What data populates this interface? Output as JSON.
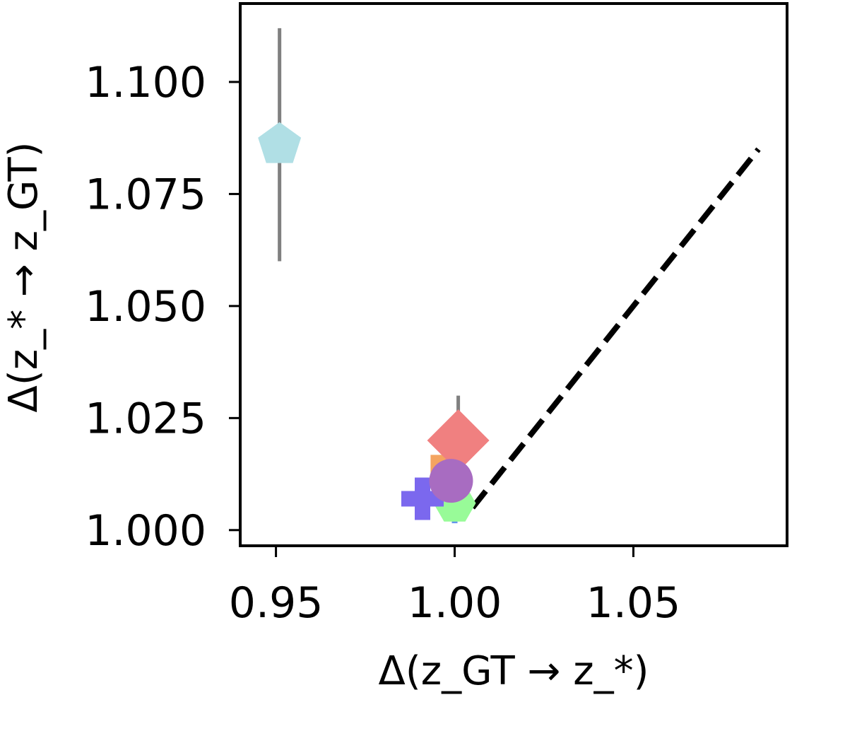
{
  "chart_data": {
    "type": "scatter",
    "xlabel": "Δ(z_GT → z_*)",
    "ylabel": "Δ(z_* → z_GT)",
    "xlim": [
      0.94,
      1.093
    ],
    "ylim": [
      0.9965,
      1.1175
    ],
    "xticks": [
      "0.95",
      "1.00",
      "1.05"
    ],
    "yticks": [
      "1.000",
      "1.025",
      "1.050",
      "1.075",
      "1.100"
    ],
    "reference_line": {
      "style": "dashed",
      "color": "#000000",
      "x": [
        1.005,
        1.085
      ],
      "y": [
        1.005,
        1.085
      ]
    },
    "points": [
      {
        "marker": "pentagon",
        "color": "#b0dfe5",
        "x": 0.951,
        "y": 1.086,
        "yerr": [
          1.06,
          1.112
        ]
      },
      {
        "marker": "diamond",
        "color": "#f08080",
        "x": 1.001,
        "y": 1.02,
        "yerr": [
          1.01,
          1.03
        ]
      },
      {
        "marker": "square",
        "color": "#f4a460",
        "x": 0.998,
        "y": 1.013
      },
      {
        "marker": "cross",
        "color": "#6495ed",
        "x": 1.0,
        "y": 1.005
      },
      {
        "marker": "hexagon",
        "color": "#98fb98",
        "x": 1.0,
        "y": 1.006
      },
      {
        "marker": "plus",
        "color": "#7b68ee",
        "x": 0.991,
        "y": 1.007
      },
      {
        "marker": "circle",
        "color": "#a86cc1",
        "x": 0.999,
        "y": 1.011
      }
    ]
  }
}
